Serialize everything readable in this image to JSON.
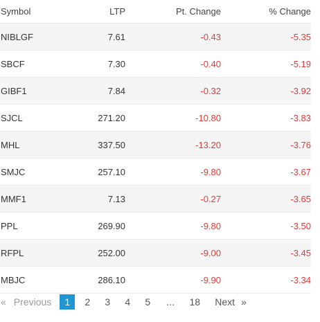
{
  "table": {
    "headers": {
      "symbol": "Symbol",
      "ltp": "LTP",
      "pt_change": "Pt. Change",
      "pct_change": "% Change"
    },
    "rows": [
      {
        "symbol": "NIBLGF",
        "ltp": "7.61",
        "pt_change": "-0.43",
        "pct_change": "-5.35"
      },
      {
        "symbol": "SBCF",
        "ltp": "7.30",
        "pt_change": "-0.40",
        "pct_change": "-5.19"
      },
      {
        "symbol": "GIBF1",
        "ltp": "7.84",
        "pt_change": "-0.32",
        "pct_change": "-3.92"
      },
      {
        "symbol": "SJCL",
        "ltp": "271.20",
        "pt_change": "-10.80",
        "pct_change": "-3.83"
      },
      {
        "symbol": "MHL",
        "ltp": "337.50",
        "pt_change": "-13.20",
        "pct_change": "-3.76"
      },
      {
        "symbol": "SMJC",
        "ltp": "257.10",
        "pt_change": "-9.80",
        "pct_change": "-3.67"
      },
      {
        "symbol": "MMF1",
        "ltp": "7.13",
        "pt_change": "-0.27",
        "pct_change": "-3.65"
      },
      {
        "symbol": "PPL",
        "ltp": "269.90",
        "pt_change": "-9.80",
        "pct_change": "-3.50"
      },
      {
        "symbol": "RFPL",
        "ltp": "252.00",
        "pt_change": "-9.00",
        "pct_change": "-3.45"
      },
      {
        "symbol": "MBJC",
        "ltp": "286.10",
        "pt_change": "-9.90",
        "pct_change": "-3.34"
      }
    ]
  },
  "pagination": {
    "prev_arrow": "«",
    "prev_label": "Previous",
    "pages": [
      "1",
      "2",
      "3",
      "4",
      "5"
    ],
    "active_page": "1",
    "ellipsis": "...",
    "last_page": "18",
    "next_label": "Next",
    "next_arrow": "»"
  },
  "colors": {
    "negative": "#e23a3a",
    "active_page_bg": "#2196d3",
    "stripe": "#f5f5f5"
  }
}
